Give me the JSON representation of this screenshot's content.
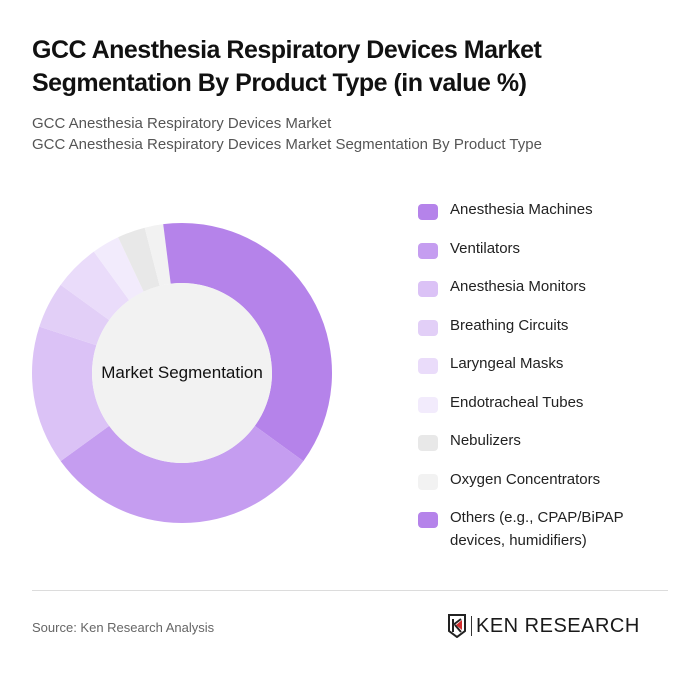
{
  "title": "GCC Anesthesia Respiratory Devices Market Segmentation By Product Type (in value %)",
  "subtitle_line1": "GCC Anesthesia Respiratory Devices Market",
  "subtitle_line2": "GCC Anesthesia Respiratory Devices Market Segmentation By Product Type",
  "center_label": "Market Segmentation",
  "source": "Source: Ken Research Analysis",
  "logo": {
    "text": "KEN RESEARCH",
    "icon": "ken-research-shield-icon"
  },
  "legend": [
    {
      "label": "Anesthesia Machines",
      "color": "#b583ea"
    },
    {
      "label": "Ventilators",
      "color": "#c59df0"
    },
    {
      "label": "Anesthesia Monitors",
      "color": "#dbc2f6"
    },
    {
      "label": "Breathing Circuits",
      "color": "#e2cff7"
    },
    {
      "label": "Laryngeal Masks",
      "color": "#eadcfa"
    },
    {
      "label": "Endotracheal Tubes",
      "color": "#f2ebfc"
    },
    {
      "label": "Nebulizers",
      "color": "#e8e8e8"
    },
    {
      "label": "Oxygen Concentrators",
      "color": "#f2f2f2"
    },
    {
      "label": "Others (e.g., CPAP/BiPAP devices, humidifiers)",
      "color": "#b583ea"
    }
  ],
  "chart_data": {
    "type": "pie",
    "subtype": "donut",
    "title": "GCC Anesthesia Respiratory Devices Market Segmentation By Product Type (in value %)",
    "center_text": "Market Segmentation",
    "categories": [
      "Anesthesia Machines",
      "Ventilators",
      "Anesthesia Monitors",
      "Breathing Circuits",
      "Laryngeal Masks",
      "Endotracheal Tubes",
      "Nebulizers",
      "Oxygen Concentrators",
      "Others (e.g., CPAP/BiPAP devices, humidifiers)"
    ],
    "values": [
      35,
      30,
      15,
      5,
      5,
      3,
      3,
      2,
      2
    ],
    "colors": [
      "#b583ea",
      "#c59df0",
      "#dbc2f6",
      "#e2cff7",
      "#eadcfa",
      "#f2ebfc",
      "#e8e8e8",
      "#f2f2f2",
      "#b583ea"
    ],
    "unit": "%",
    "legend_position": "right"
  }
}
